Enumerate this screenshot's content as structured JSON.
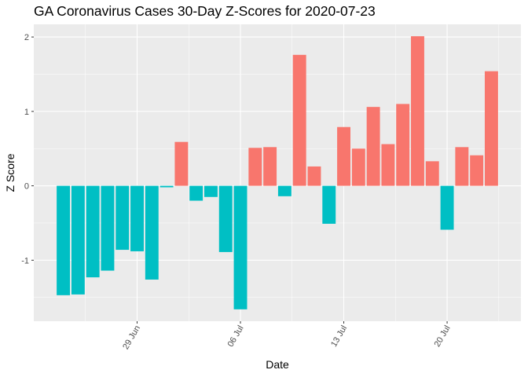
{
  "chart_data": {
    "type": "bar",
    "title": "GA Coronavirus Cases 30-Day Z-Scores for 2020-07-23",
    "xlabel": "Date",
    "ylabel": "Z Score",
    "x_start": "2020-06-24",
    "x_end": "2020-07-23",
    "values": [
      -1.47,
      -1.46,
      -1.23,
      -1.14,
      -0.86,
      -0.88,
      -1.26,
      -0.02,
      0.59,
      -0.2,
      -0.15,
      -0.89,
      -1.66,
      0.51,
      0.52,
      -0.14,
      1.76,
      0.26,
      -0.51,
      0.79,
      0.5,
      1.06,
      0.56,
      1.1,
      2.01,
      0.33,
      -0.59,
      0.52,
      0.41,
      1.54
    ],
    "x_ticks": [
      "29 Jun",
      "06 Jul",
      "13 Jul",
      "20 Jul"
    ],
    "y_ticks": [
      "-1",
      "0",
      "1",
      "2"
    ],
    "ylim": [
      -1.82,
      2.17
    ],
    "grid": true,
    "legend": "none",
    "colors": {
      "positive": "#F8766D",
      "negative": "#00BFC4",
      "panel": "#EBEBEB",
      "grid": "#FFFFFF"
    }
  }
}
